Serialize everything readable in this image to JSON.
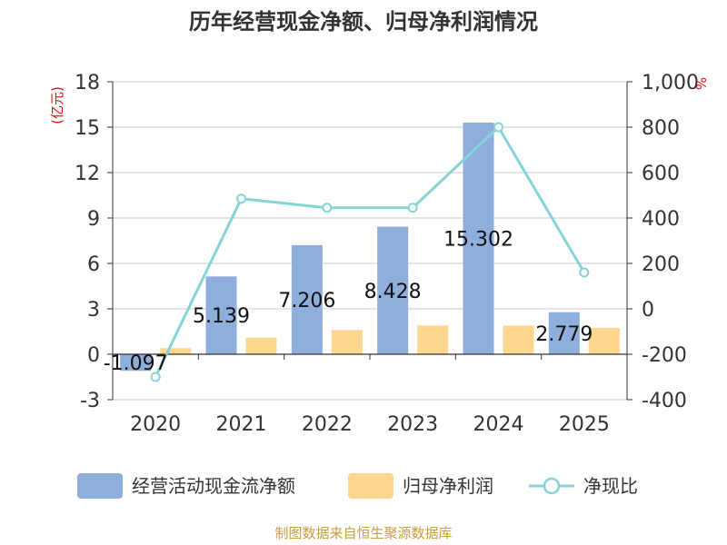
{
  "chart_data": {
    "type": "bar",
    "title": "历年经营现金净额、归母净利润情况",
    "categories": [
      "2020",
      "2021",
      "2022",
      "2023",
      "2024",
      "2025"
    ],
    "series": [
      {
        "name": "经营活动现金流净额",
        "type": "bar",
        "axis": "left",
        "values": [
          -1.097,
          5.139,
          7.206,
          8.428,
          15.302,
          2.779
        ],
        "labels": [
          "-1.097",
          "5.139",
          "7.206",
          "8.428",
          "15.302",
          "2.779"
        ],
        "color": "#8eaedb"
      },
      {
        "name": "归母净利润",
        "type": "bar",
        "axis": "left",
        "values": [
          0.4,
          1.1,
          1.6,
          1.9,
          1.9,
          1.75
        ],
        "color": "#fdd690"
      },
      {
        "name": "净现比",
        "type": "line",
        "axis": "right",
        "values": [
          -300,
          485,
          445,
          445,
          800,
          160
        ],
        "color": "#86d4d6"
      }
    ],
    "left_axis": {
      "label": "(亿元)",
      "min": -3,
      "max": 18,
      "ticks": [
        "-3",
        "0",
        "3",
        "6",
        "9",
        "12",
        "15",
        "18"
      ]
    },
    "right_axis": {
      "label": "%",
      "min": -400,
      "max": 1000,
      "ticks": [
        "-400",
        "-200",
        "0",
        "200",
        "400",
        "600",
        "800",
        "1,000"
      ]
    },
    "grid": true,
    "legend": "bottom"
  },
  "footer": {
    "source": "制图数据来自恒生聚源数据库"
  },
  "colors": {
    "title": "#333333",
    "axis_label": "#e01010",
    "tick": "#333333",
    "grid": "#cccccc",
    "source": "#c8a03c"
  }
}
